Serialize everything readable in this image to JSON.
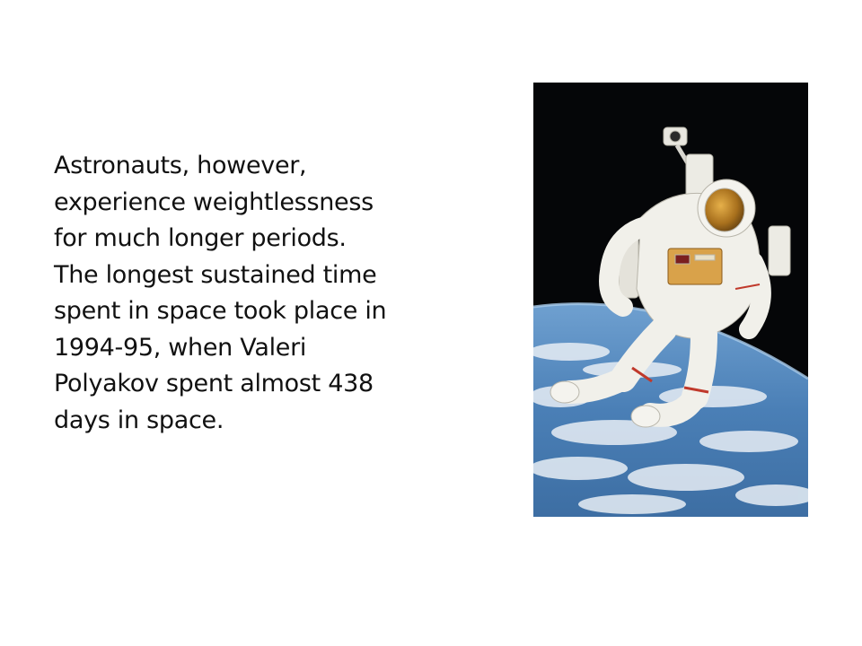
{
  "slide": {
    "text_lines": [
      "Astronauts, however,",
      "experience weightlessness",
      "for much longer periods.",
      "The longest sustained time",
      "spent in space took place in",
      "1994-95, when Valeri",
      "Polyakov spent almost 438",
      "days in space."
    ]
  },
  "photo": {
    "subject": "astronaut-floating-above-earth",
    "colors": {
      "space": "#050608",
      "earth_blue": "#4a7fb6",
      "clouds": "#e8eef5",
      "suit": "#f1f0ea",
      "visor": "#c58a2a",
      "stripe": "#c0392b"
    }
  }
}
